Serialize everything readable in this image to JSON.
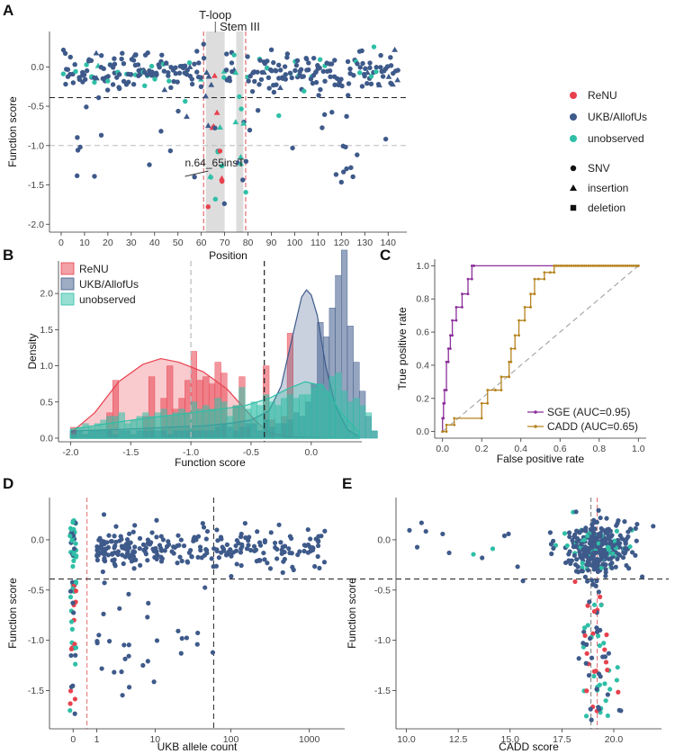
{
  "colors": {
    "renu": "#e8414e",
    "ukb": "#3e5a8a",
    "unobserved": "#2fbfa7",
    "sge": "#8b2f9a",
    "cadd": "#b5831e",
    "shade": "#dddddd",
    "red_line": "#e36b70"
  },
  "chart_data": [
    {
      "panel": "A",
      "type": "scatter",
      "xlabel": "Position",
      "ylabel": "Function score",
      "xlim": [
        -5,
        148
      ],
      "ylim": [
        -2.1,
        0.45
      ],
      "xticks": [
        0,
        10,
        20,
        30,
        40,
        50,
        60,
        70,
        80,
        90,
        100,
        110,
        120,
        130,
        140
      ],
      "yticks": [
        0.0,
        -0.5,
        -1.0,
        -1.5,
        -2.0
      ],
      "ytick_labels": [
        "0.0",
        "-0.5",
        "-1.0",
        "-1.5",
        "-2.0"
      ],
      "regions": [
        {
          "label": "T-loop",
          "x0": 62,
          "x1": 70
        },
        {
          "label": "Stem III",
          "x0": 75,
          "x1": 78
        }
      ],
      "vlines": [
        61,
        79
      ],
      "hlines": [
        {
          "y": -0.39,
          "style": "black-dashed"
        },
        {
          "y": -1.0,
          "style": "grey-dashed"
        }
      ],
      "annotation": {
        "text": "n.64_65insT",
        "x": 64.5,
        "y": -1.3
      },
      "legend_color": [
        {
          "label": "ReNU",
          "key": "renu"
        },
        {
          "label": "UKB/AllofUs",
          "key": "ukb"
        },
        {
          "label": "unobserved",
          "key": "unobserved"
        }
      ],
      "legend_shape": [
        {
          "label": "SNV",
          "shape": "circle"
        },
        {
          "label": "insertion",
          "shape": "triangle"
        },
        {
          "label": "deletion",
          "shape": "square"
        }
      ]
    },
    {
      "panel": "B",
      "type": "histogram-density",
      "xlabel": "Function score",
      "ylabel": "Density",
      "xlim": [
        -2.1,
        0.42
      ],
      "ylim": [
        -0.05,
        2.45
      ],
      "xticks": [
        -2.0,
        -1.5,
        -1.0,
        -0.5,
        0.0
      ],
      "xtick_labels": [
        "-2.0",
        "-1.5",
        "-1.0",
        "-0.5",
        "0.0"
      ],
      "yticks": [
        0.0,
        0.5,
        1.0,
        1.5,
        2.0
      ],
      "ytick_labels": [
        "0.0",
        "0.5",
        "1.0",
        "1.5",
        "2.0"
      ],
      "vlines": [
        {
          "x": -1.0,
          "style": "grey-dashed"
        },
        {
          "x": -0.39,
          "style": "black-dashed"
        }
      ],
      "bin_edges_start": -2.0,
      "bin_width": 0.05,
      "series": [
        {
          "name": "ReNU",
          "key": "renu",
          "hist": [
            0.15,
            0,
            0,
            0,
            0,
            0,
            0.35,
            0.8,
            0,
            0,
            0,
            0,
            0.3,
            0.85,
            0,
            0.55,
            1.0,
            0.4,
            0.55,
            0.8,
            1.2,
            0.8,
            0.85,
            0.75,
            1.05,
            0.9,
            0,
            0.45,
            0.85,
            0.15,
            0,
            0,
            1.0,
            0.25,
            0,
            0.3,
            1.45,
            0,
            0,
            0,
            0,
            0,
            0,
            0,
            0,
            0,
            0,
            0,
            0,
            0,
            0
          ],
          "density_x": [
            -2.0,
            -1.8,
            -1.6,
            -1.4,
            -1.25,
            -1.1,
            -0.9,
            -0.7,
            -0.55,
            -0.45,
            -0.35,
            -0.2,
            0.0,
            0.2,
            0.4
          ],
          "density_y": [
            0.07,
            0.35,
            0.78,
            1.02,
            1.1,
            1.05,
            0.92,
            0.68,
            0.4,
            0.22,
            0.08,
            0.02,
            0.01,
            0.0,
            0.0
          ]
        },
        {
          "name": "UKB/AllofUs",
          "key": "ukb",
          "hist": [
            0.1,
            0.1,
            0.05,
            0.1,
            0.1,
            0.1,
            0.1,
            0.05,
            0.1,
            0.1,
            0.05,
            0.1,
            0.1,
            0.1,
            0.1,
            0.1,
            0.05,
            0.1,
            0.1,
            0.1,
            0.1,
            0.1,
            0.1,
            0.1,
            0.15,
            0.2,
            0.15,
            0.1,
            0.15,
            0.2,
            0.2,
            0.1,
            0.25,
            0.15,
            0.2,
            0.2,
            0.25,
            0.35,
            0.3,
            0.5,
            0.75,
            1.6,
            1.4,
            1.8,
            2.25,
            2.6,
            1.55,
            1.05,
            0.65,
            0.3,
            0.1
          ],
          "density_x": [
            -2.0,
            -1.6,
            -1.2,
            -0.9,
            -0.7,
            -0.5,
            -0.35,
            -0.25,
            -0.15,
            -0.08,
            -0.04,
            0.0,
            0.05,
            0.12,
            0.2,
            0.3,
            0.4
          ],
          "density_y": [
            0.1,
            0.12,
            0.15,
            0.17,
            0.2,
            0.25,
            0.38,
            0.72,
            1.45,
            1.95,
            2.05,
            1.98,
            1.7,
            1.0,
            0.45,
            0.12,
            0.02
          ]
        },
        {
          "name": "unobserved",
          "key": "unobserved",
          "hist": [
            0.05,
            0.15,
            0.2,
            0.15,
            0.2,
            0.25,
            0.3,
            0.3,
            0.35,
            0.2,
            0.25,
            0.3,
            0.35,
            0.3,
            0.35,
            0.4,
            0.3,
            0.35,
            0.4,
            0.35,
            0.5,
            0.4,
            0.45,
            0.4,
            0.55,
            0.5,
            0.3,
            0.45,
            0.7,
            0.4,
            0.5,
            0.45,
            0.6,
            0.5,
            0.45,
            0.55,
            0.6,
            0.55,
            0.6,
            0.6,
            0.7,
            0.75,
            0.65,
            0.85,
            0.9,
            0.65,
            0.5,
            0.55,
            0.45,
            0.35,
            0.1
          ],
          "density_x": [
            -2.0,
            -1.7,
            -1.4,
            -1.1,
            -0.8,
            -0.55,
            -0.35,
            -0.2,
            -0.05,
            0.1,
            0.25,
            0.4
          ],
          "density_y": [
            0.12,
            0.2,
            0.27,
            0.33,
            0.39,
            0.45,
            0.55,
            0.68,
            0.78,
            0.72,
            0.35,
            0.08
          ]
        }
      ]
    },
    {
      "panel": "C",
      "type": "line",
      "xlabel": "False positive rate",
      "ylabel": "True positive rate",
      "xlim": [
        -0.04,
        1.04
      ],
      "ylim": [
        -0.04,
        1.04
      ],
      "xticks": [
        0.0,
        0.2,
        0.4,
        0.6,
        0.8,
        1.0
      ],
      "xtick_labels": [
        "0.0",
        "0.2",
        "0.4",
        "0.6",
        "0.8",
        "1.0"
      ],
      "yticks": [
        0.0,
        0.2,
        0.4,
        0.6,
        0.8,
        1.0
      ],
      "ytick_labels": [
        "0.0",
        "0.2",
        "0.4",
        "0.6",
        "0.8",
        "1.0"
      ],
      "series": [
        {
          "name": "SGE (AUC=0.95)",
          "key": "sge",
          "x": [
            0.0,
            0.0,
            0.005,
            0.005,
            0.01,
            0.01,
            0.02,
            0.02,
            0.03,
            0.03,
            0.04,
            0.04,
            0.05,
            0.05,
            0.07,
            0.07,
            0.1,
            0.1,
            0.13,
            0.13,
            0.15,
            0.15,
            0.16,
            0.16,
            1.0
          ],
          "y": [
            0.0,
            0.08,
            0.08,
            0.17,
            0.17,
            0.25,
            0.25,
            0.42,
            0.42,
            0.5,
            0.5,
            0.58,
            0.58,
            0.67,
            0.67,
            0.75,
            0.75,
            0.83,
            0.83,
            0.92,
            0.92,
            1.0,
            1.0,
            1.0,
            1.0
          ]
        },
        {
          "name": "CADD (AUC=0.65)",
          "key": "cadd",
          "x": [
            0.0,
            0.0,
            0.02,
            0.02,
            0.06,
            0.06,
            0.2,
            0.2,
            0.23,
            0.23,
            0.27,
            0.27,
            0.3,
            0.3,
            0.34,
            0.34,
            0.35,
            0.35,
            0.37,
            0.37,
            0.39,
            0.39,
            0.42,
            0.42,
            0.45,
            0.45,
            0.47,
            0.47,
            0.49,
            0.49,
            0.52,
            0.52,
            0.55,
            0.55,
            0.57,
            0.57,
            1.0
          ],
          "y": [
            0.0,
            0.0,
            0.0,
            0.04,
            0.04,
            0.08,
            0.08,
            0.17,
            0.17,
            0.25,
            0.25,
            0.25,
            0.25,
            0.33,
            0.33,
            0.42,
            0.42,
            0.5,
            0.5,
            0.58,
            0.58,
            0.67,
            0.67,
            0.75,
            0.75,
            0.83,
            0.83,
            0.92,
            0.92,
            0.92,
            0.92,
            0.96,
            0.96,
            0.96,
            0.96,
            1.0,
            1.0
          ]
        }
      ],
      "diagonal": true
    },
    {
      "panel": "D",
      "type": "scatter",
      "xlabel": "UKB allele count",
      "ylabel": "Function score",
      "xscale": "pseudo-log",
      "xlim": [
        -0.3,
        3.45
      ],
      "ylim": [
        -1.88,
        0.42
      ],
      "xticks": [
        0,
        1,
        10,
        100,
        1000
      ],
      "xtick_labels": [
        "0",
        "1",
        "10",
        "100",
        "1000"
      ],
      "yticks": [
        0.0,
        -0.5,
        -1.0,
        -1.5
      ],
      "ytick_labels": [
        "0.0",
        "-0.5",
        "-1.0",
        "-1.5"
      ],
      "hline": -0.39,
      "vline_count": 60,
      "red_vline_count": 0.5
    },
    {
      "panel": "E",
      "type": "scatter",
      "xlabel": "CADD score",
      "ylabel": "Function score",
      "xlim": [
        9.5,
        22.3
      ],
      "ylim": [
        -1.88,
        0.42
      ],
      "xticks": [
        10.0,
        12.5,
        15.0,
        17.5,
        20.0
      ],
      "xtick_labels": [
        "10.0",
        "12.5",
        "15.0",
        "17.5",
        "20.0"
      ],
      "yticks": [
        0.0,
        -0.5,
        -1.0,
        -1.5
      ],
      "ytick_labels": [
        "0.0",
        "-0.5",
        "-1.0",
        "-1.5"
      ],
      "hline": -0.39,
      "vlines": [
        18.9,
        19.2
      ]
    }
  ],
  "panels": {
    "a": "A",
    "b": "B",
    "c": "C",
    "d": "D",
    "e": "E"
  }
}
